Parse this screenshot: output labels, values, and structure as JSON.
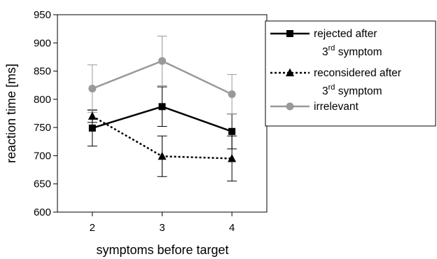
{
  "chart_data": {
    "type": "line",
    "x": [
      2,
      3,
      4
    ],
    "xlabel": "symptoms before target",
    "ylabel": "reaction time [ms]",
    "ylim": [
      600,
      950
    ],
    "yticks": [
      600,
      650,
      700,
      750,
      800,
      850,
      900,
      950
    ],
    "grid": false,
    "legend_position": "right",
    "series": [
      {
        "name_parts": [
          "rejected after",
          "3",
          "rd",
          " symptom"
        ],
        "values": [
          749,
          787,
          743
        ],
        "errors": [
          32,
          35,
          31
        ],
        "color": "#000000",
        "line_style": "solid",
        "marker": "square"
      },
      {
        "name_parts": [
          "reconsidered after",
          "3",
          "rd",
          " symptom"
        ],
        "values": [
          770,
          699,
          695
        ],
        "errors": [
          11,
          36,
          40
        ],
        "color": "#000000",
        "line_style": "dotted",
        "marker": "triangle"
      },
      {
        "name_parts": [
          "irrelevant"
        ],
        "values": [
          819,
          868,
          809
        ],
        "errors": [
          42,
          44,
          35
        ],
        "color": "#999999",
        "line_style": "solid",
        "marker": "circle"
      }
    ]
  }
}
